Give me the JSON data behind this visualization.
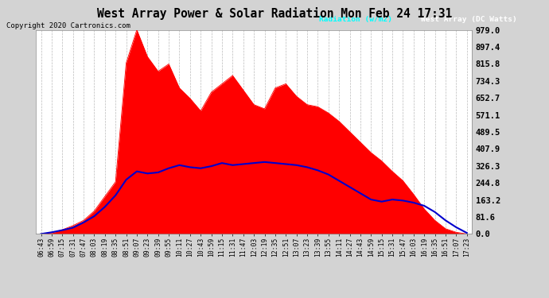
{
  "title": "West Array Power & Solar Radiation Mon Feb 24 17:31",
  "copyright": "Copyright 2020 Cartronics.com",
  "background_color": "#d3d3d3",
  "plot_bg_color": "#ffffff",
  "yticks": [
    0.0,
    81.6,
    163.2,
    244.8,
    326.3,
    407.9,
    489.5,
    571.1,
    652.7,
    734.3,
    815.8,
    897.4,
    979.0
  ],
  "ylim": [
    0,
    979.0
  ],
  "x_labels": [
    "06:43",
    "06:59",
    "07:15",
    "07:31",
    "07:47",
    "08:03",
    "08:19",
    "08:35",
    "08:51",
    "09:07",
    "09:23",
    "09:39",
    "09:55",
    "10:11",
    "10:27",
    "10:43",
    "10:59",
    "11:15",
    "11:31",
    "11:47",
    "12:03",
    "12:19",
    "12:35",
    "12:51",
    "13:07",
    "13:23",
    "13:39",
    "13:55",
    "14:11",
    "14:27",
    "14:43",
    "14:59",
    "15:15",
    "15:31",
    "15:47",
    "16:03",
    "16:19",
    "16:35",
    "16:51",
    "17:07",
    "17:23"
  ],
  "red_fill_data": [
    0,
    5,
    20,
    40,
    65,
    110,
    180,
    250,
    820,
    979,
    850,
    780,
    815,
    700,
    650,
    590,
    680,
    720,
    760,
    690,
    620,
    600,
    700,
    720,
    660,
    620,
    610,
    580,
    540,
    490,
    440,
    390,
    350,
    300,
    255,
    190,
    120,
    65,
    25,
    8,
    0
  ],
  "blue_line_data": [
    0,
    8,
    18,
    30,
    55,
    85,
    130,
    185,
    260,
    300,
    290,
    295,
    315,
    330,
    320,
    315,
    325,
    340,
    330,
    335,
    340,
    345,
    340,
    335,
    330,
    320,
    305,
    285,
    255,
    225,
    195,
    165,
    155,
    165,
    160,
    150,
    135,
    105,
    65,
    32,
    5
  ],
  "legend_radiation_color": "#0000cd",
  "legend_radiation_bg": "#000080",
  "legend_radiation_text_color": "#00ffff",
  "legend_westarray_bg": "#cc0000",
  "legend_westarray_text_color": "#ffffff",
  "title_fontsize": 10.5,
  "copyright_fontsize": 6.5,
  "tick_fontsize": 5.8,
  "ytick_fontsize": 7.5
}
